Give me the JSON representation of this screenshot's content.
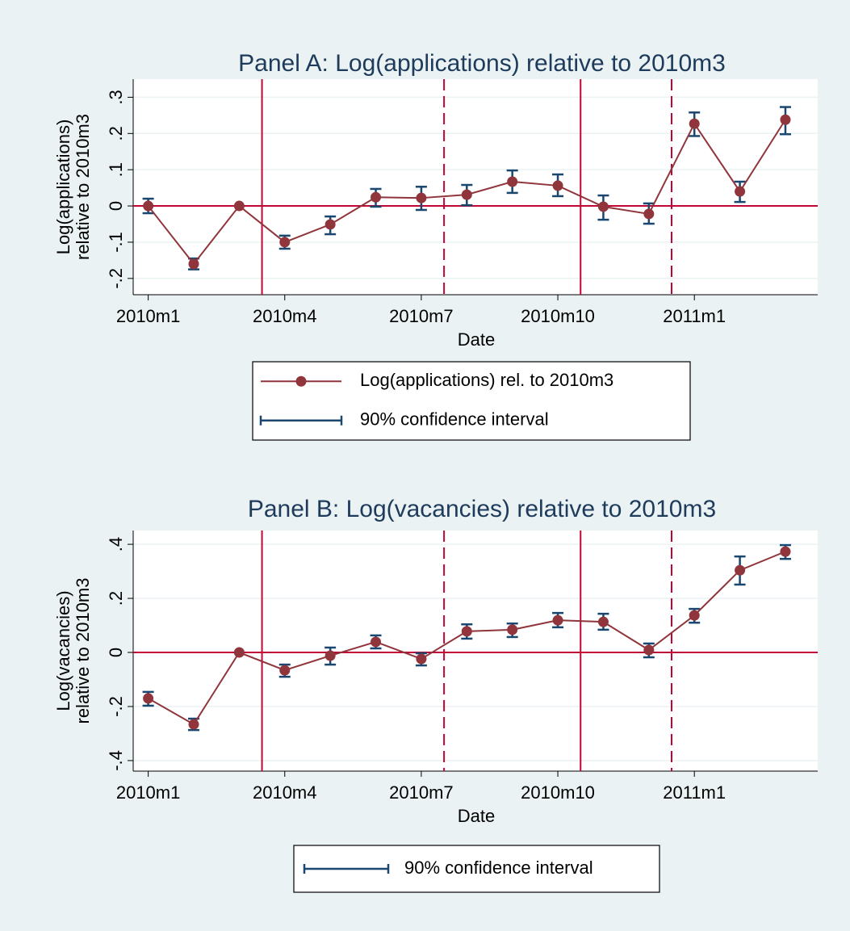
{
  "chart_data": [
    {
      "type": "line",
      "title": "Panel A: Log(applications) relative to 2010m3",
      "x_label": "Date",
      "y_label": [
        "Log(applications)",
        "relative to 2010m3"
      ],
      "categories": [
        "2010m1",
        null,
        null,
        "2010m4",
        null,
        null,
        "2010m7",
        null,
        null,
        "2010m10",
        null,
        null,
        "2011m1",
        null,
        null
      ],
      "series": [
        {
          "name": "Log(applications) rel. to 2010m3",
          "color": "#90353b",
          "values": [
            0,
            -0.16,
            0,
            -0.1,
            -0.051,
            0.024,
            0.022,
            0.031,
            0.067,
            0.056,
            -0.002,
            -0.022,
            0.227,
            0.04,
            0.238
          ],
          "ci_low": [
            -0.02,
            -0.175,
            null,
            -0.118,
            -0.078,
            -0.002,
            -0.011,
            0.002,
            0.036,
            0.027,
            -0.038,
            -0.049,
            0.193,
            0.011,
            0.198
          ],
          "ci_high": [
            0.02,
            -0.145,
            null,
            -0.082,
            -0.029,
            0.047,
            0.053,
            0.058,
            0.098,
            0.087,
            0.029,
            0.007,
            0.258,
            0.067,
            0.273
          ],
          "ci_label": "90% confidence interval",
          "ci_color": "#1a476f"
        }
      ],
      "ylim": [
        -0.245,
        0.35
      ],
      "yticks": [
        {
          "value": -0.2,
          "label": "-.2"
        },
        {
          "value": -0.1,
          "label": "-.1"
        },
        0,
        {
          "value": 0.1,
          "label": ".1"
        },
        {
          "value": 0.2,
          "label": ".2"
        },
        {
          "value": 0.3,
          "label": ".3"
        }
      ],
      "grid": true,
      "hlines": [
        0
      ],
      "vlines": [
        {
          "x": 2.5,
          "style": "solid"
        },
        {
          "x": 6.5,
          "style": "dashed"
        },
        {
          "x": 9.5,
          "style": "solid"
        },
        {
          "x": 11.5,
          "style": "dashed"
        }
      ],
      "ref_color": "#c10534"
    },
    {
      "type": "line",
      "title": "Panel B: Log(vacancies) relative to 2010m3",
      "x_label": "Date",
      "y_label": [
        "Log(vacancies)",
        "relative to 2010m3"
      ],
      "categories": [
        "2010m1",
        null,
        null,
        "2010m4",
        null,
        null,
        "2010m7",
        null,
        null,
        "2010m10",
        null,
        null,
        "2011m1",
        null,
        null
      ],
      "series": [
        {
          "color": "#90353b",
          "values": [
            -0.17,
            -0.266,
            0,
            -0.066,
            -0.012,
            0.039,
            -0.024,
            0.078,
            0.084,
            0.119,
            0.113,
            0.009,
            0.137,
            0.304,
            0.373
          ],
          "ci_low": [
            -0.197,
            -0.287,
            null,
            -0.09,
            -0.045,
            0.015,
            -0.048,
            0.051,
            0.057,
            0.093,
            0.084,
            -0.018,
            0.11,
            0.251,
            0.346
          ],
          "ci_high": [
            -0.146,
            -0.245,
            null,
            -0.045,
            0.018,
            0.063,
            -0.003,
            0.104,
            0.107,
            0.146,
            0.143,
            0.033,
            0.161,
            0.355,
            0.397
          ],
          "ci_label": "90% confidence interval",
          "ci_color": "#1a476f"
        }
      ],
      "ylim": [
        -0.439,
        0.451
      ],
      "yticks": [
        {
          "value": -0.4,
          "label": "-.4"
        },
        {
          "value": -0.2,
          "label": "-.2"
        },
        0,
        {
          "value": 0.2,
          "label": ".2"
        },
        {
          "value": 0.4,
          "label": ".4"
        }
      ],
      "grid": true,
      "hlines": [
        0
      ],
      "vlines": [
        {
          "x": 2.5,
          "style": "solid"
        },
        {
          "x": 6.5,
          "style": "dashed"
        },
        {
          "x": 9.5,
          "style": "solid"
        },
        {
          "x": 11.5,
          "style": "dashed"
        }
      ],
      "ref_color": "#c10534"
    }
  ]
}
